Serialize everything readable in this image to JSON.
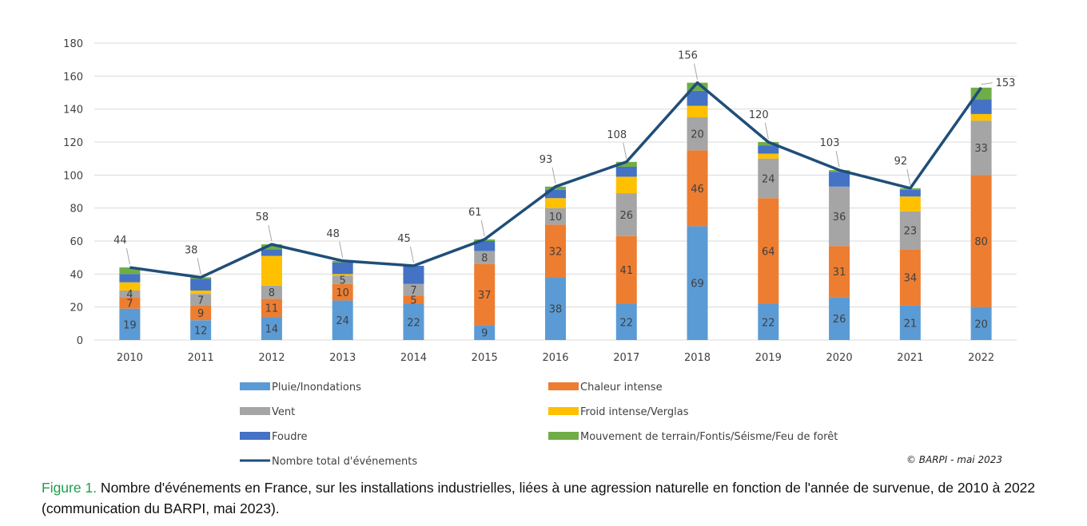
{
  "chart_data": {
    "type": "bar",
    "stacked": true,
    "categories": [
      "2010",
      "2011",
      "2012",
      "2013",
      "2014",
      "2015",
      "2016",
      "2017",
      "2018",
      "2019",
      "2020",
      "2021",
      "2022"
    ],
    "ylim": [
      0,
      180
    ],
    "yticks": [
      0,
      20,
      40,
      60,
      80,
      100,
      120,
      140,
      160,
      180
    ],
    "grid": true,
    "legend_position": "bottom",
    "series": [
      {
        "name": "Pluie/Inondations",
        "color": "#5b9bd5",
        "values": [
          19,
          12,
          14,
          24,
          22,
          9,
          38,
          22,
          69,
          22,
          26,
          21,
          20
        ]
      },
      {
        "name": "Chaleur intense",
        "color": "#ed7d31",
        "values": [
          7,
          9,
          11,
          10,
          5,
          37,
          32,
          41,
          46,
          64,
          31,
          34,
          80
        ]
      },
      {
        "name": "Vent",
        "color": "#a5a5a5",
        "values": [
          4,
          7,
          8,
          5,
          7,
          8,
          10,
          26,
          20,
          24,
          36,
          23,
          33
        ]
      },
      {
        "name": "Froid intense/Verglas",
        "color": "#ffc000",
        "values": [
          5,
          2,
          18,
          1,
          0,
          0,
          6,
          10,
          7,
          3,
          0,
          9,
          4
        ]
      },
      {
        "name": "Foudre",
        "color": "#4472c4",
        "values": [
          5,
          7,
          4,
          7,
          11,
          6,
          5,
          6,
          9,
          5,
          9,
          4,
          9
        ]
      },
      {
        "name": "Mouvement de terrain/Fontis/Séisme/Feu de forêt",
        "color": "#70ad47",
        "values": [
          4,
          1,
          3,
          1,
          0,
          1,
          2,
          3,
          5,
          2,
          1,
          1,
          7
        ]
      }
    ],
    "line": {
      "name": "Nombre total d'événements",
      "color": "#1f4e79",
      "values": [
        44,
        38,
        58,
        48,
        45,
        61,
        93,
        108,
        156,
        120,
        103,
        92,
        153
      ]
    },
    "segment_labels": {
      "Pluie/Inondations": [
        "19",
        "12",
        "14",
        "24",
        "22",
        "9",
        "38",
        "22",
        "69",
        "22",
        "26",
        "21",
        "20"
      ],
      "Chaleur intense": [
        "7",
        "9",
        "11",
        "10",
        "5",
        "37",
        "32",
        "41",
        "46",
        "64",
        "31",
        "34",
        "80"
      ],
      "Vent": [
        "4",
        "7",
        "8",
        "5",
        "7",
        "8",
        "10",
        "26",
        "20",
        "24",
        "36",
        "23",
        "33"
      ]
    },
    "total_labels": [
      "44",
      "38",
      "58",
      "48",
      "45",
      "61",
      "93",
      "108",
      "156",
      "120",
      "103",
      "92",
      "153"
    ],
    "credit": "© BARPI - mai 2023"
  },
  "caption": {
    "figure_label": "Figure 1.",
    "text": " Nombre d'événements en France, sur les installations industrielles, liées à une agression naturelle en fonction de l'année de survenue, de 2010 à 2022 (communication du BARPI, mai 2023)."
  }
}
